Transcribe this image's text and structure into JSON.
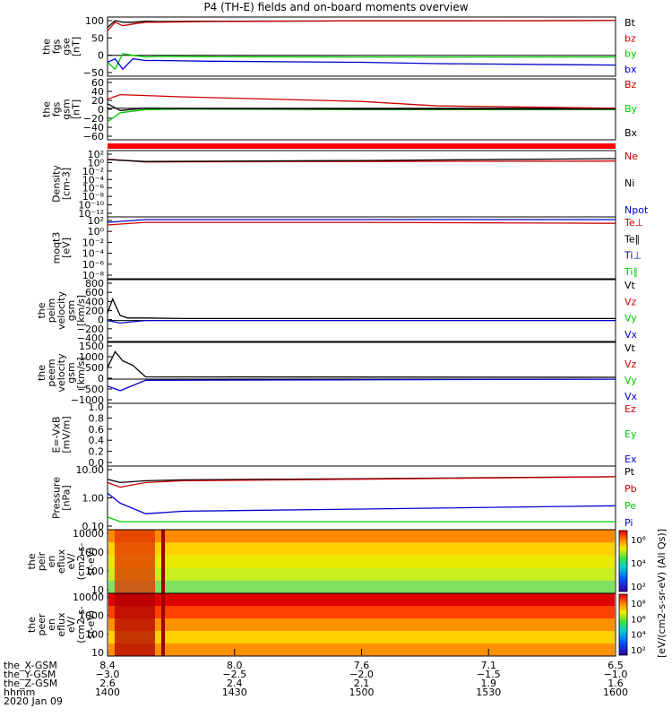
{
  "title": "P4 (TH-E) fields and on-board moments overview",
  "colors": {
    "black": "#000000",
    "red": "#cc0000",
    "green": "#00cc00",
    "blue": "#0000cc"
  },
  "chart_data": [
    {
      "type": "line",
      "ylabel": [
        "the",
        "fgs",
        "gse",
        "[nT]"
      ],
      "yticks": [
        "100",
        "50",
        "0",
        "−50"
      ],
      "legend": [
        {
          "name": "Bt",
          "color": "black"
        },
        {
          "name": "bz",
          "color": "red"
        },
        {
          "name": "by",
          "color": "green"
        },
        {
          "name": "bx",
          "color": "blue"
        }
      ],
      "series": [
        {
          "name": "Bt",
          "color": "black",
          "x": [
            1400,
            1403,
            1406,
            1410,
            1415,
            1420,
            1440,
            1500,
            1530,
            1600
          ],
          "y": [
            80,
            100,
            95,
            95,
            98,
            97,
            98,
            99,
            99,
            100
          ]
        },
        {
          "name": "bz",
          "color": "red",
          "x": [
            1400,
            1403,
            1406,
            1410,
            1415,
            1420,
            1440,
            1500,
            1530,
            1600
          ],
          "y": [
            70,
            95,
            85,
            90,
            95,
            95,
            97,
            99,
            99,
            100
          ]
        },
        {
          "name": "by",
          "color": "green",
          "x": [
            1400,
            1403,
            1406,
            1410,
            1415,
            1420,
            1440,
            1500,
            1530,
            1600
          ],
          "y": [
            -20,
            -40,
            5,
            0,
            -5,
            -3,
            -4,
            -5,
            -5,
            -5
          ]
        },
        {
          "name": "bx",
          "color": "blue",
          "x": [
            1400,
            1403,
            1406,
            1410,
            1415,
            1420,
            1440,
            1500,
            1530,
            1600
          ],
          "y": [
            -20,
            -10,
            -40,
            -10,
            -15,
            -15,
            -17,
            -20,
            -24,
            -28
          ]
        }
      ]
    },
    {
      "type": "line",
      "ylabel": [
        "the",
        "fgs",
        "gsm",
        "[nT]"
      ],
      "yticks": [
        "60",
        "40",
        "20",
        "0",
        "−20",
        "−40",
        "−60"
      ],
      "legend": [
        {
          "name": "Bz",
          "color": "red"
        },
        {
          "name": "By",
          "color": "green"
        },
        {
          "name": "Bx",
          "color": "black"
        }
      ],
      "series": [
        {
          "name": "Bz",
          "color": "red",
          "x": [
            1400,
            1405,
            1415,
            1430,
            1500,
            1530,
            1600
          ],
          "y": [
            20,
            30,
            28,
            25,
            15,
            5,
            0
          ]
        },
        {
          "name": "By",
          "color": "green",
          "x": [
            1400,
            1405,
            1415,
            1430,
            1500,
            1530,
            1600
          ],
          "y": [
            -30,
            -10,
            -3,
            -2,
            -3,
            -3,
            -3
          ]
        },
        {
          "name": "Bx",
          "color": "black",
          "x": [
            1400,
            1405,
            1415,
            1430,
            1500,
            1530,
            1600
          ],
          "y": [
            10,
            -5,
            0,
            -1,
            -2,
            -2,
            -2
          ]
        }
      ]
    },
    {
      "type": "line",
      "ylabel": [
        "Density",
        "[cm-3]"
      ],
      "yticks": [
        "10²",
        "10⁰",
        "10⁻²",
        "10⁻⁴",
        "10⁻⁶",
        "10⁻⁸",
        "10⁻¹⁰",
        "10⁻¹²"
      ],
      "legend": [
        {
          "name": "Ne",
          "color": "red"
        },
        {
          "name": "Ni",
          "color": "black"
        },
        {
          "name": "Npot",
          "color": "blue"
        }
      ],
      "series": [
        {
          "name": "Ne",
          "color": "red",
          "x": [
            1400,
            1405,
            1415,
            1500,
            1600
          ],
          "y": [
            1.5,
            1,
            0.4,
            0.5,
            0.6
          ]
        },
        {
          "name": "Ni",
          "color": "black",
          "x": [
            1400,
            1405,
            1415,
            1500,
            1600
          ],
          "y": [
            1.3,
            0.9,
            0.5,
            0.8,
            2
          ]
        }
      ]
    },
    {
      "type": "line",
      "ylabel": [
        "moqt3",
        "[eV]"
      ],
      "yticks": [
        "10²",
        "10⁰",
        "10⁻²",
        "10⁻⁴",
        "10⁻⁶",
        "10⁻⁸"
      ],
      "legend": [
        {
          "name": "Te⊥",
          "color": "red"
        },
        {
          "name": "Te∥",
          "color": "black"
        },
        {
          "name": "Ti⊥",
          "color": "blue"
        },
        {
          "name": "Ti∥",
          "color": "green"
        }
      ],
      "series": [
        {
          "name": "Ti",
          "color": "blue",
          "x": [
            1400,
            1415,
            1500,
            1600
          ],
          "y": [
            30,
            100,
            100,
            100
          ]
        },
        {
          "name": "Te",
          "color": "red",
          "x": [
            1400,
            1415,
            1500,
            1600
          ],
          "y": [
            10,
            30,
            30,
            20
          ]
        }
      ]
    },
    {
      "type": "line",
      "ylabel": [
        "the",
        "peim",
        "velocity",
        "gsm",
        "[km/s]"
      ],
      "yticks": [
        "800",
        "600",
        "400",
        "200",
        "0",
        "−200",
        "−400"
      ],
      "legend": [
        {
          "name": "Vt",
          "color": "black"
        },
        {
          "name": "Vz",
          "color": "red"
        },
        {
          "name": "Vy",
          "color": "green"
        },
        {
          "name": "Vx",
          "color": "blue"
        }
      ],
      "series": [
        {
          "name": "Vt",
          "color": "black",
          "x": [
            1400,
            1402,
            1405,
            1408,
            1415,
            1430,
            1600
          ],
          "y": [
            150,
            430,
            100,
            50,
            50,
            40,
            40
          ]
        },
        {
          "name": "Vx",
          "color": "blue",
          "x": [
            1400,
            1405,
            1415,
            1430,
            1600
          ],
          "y": [
            0,
            -50,
            0,
            0,
            0
          ]
        }
      ]
    },
    {
      "type": "line",
      "ylabel": [
        "the",
        "peem",
        "velocity",
        "gsm",
        "[km/s]"
      ],
      "yticks": [
        "1500",
        "1000",
        "500",
        "0",
        "−500",
        "−1000"
      ],
      "legend": [
        {
          "name": "Vt",
          "color": "black"
        },
        {
          "name": "Vz",
          "color": "red"
        },
        {
          "name": "Vy",
          "color": "green"
        },
        {
          "name": "Vx",
          "color": "blue"
        }
      ],
      "series": [
        {
          "name": "Vt",
          "color": "black",
          "x": [
            1400,
            1403,
            1406,
            1410,
            1415,
            1600
          ],
          "y": [
            500,
            1200,
            800,
            600,
            100,
            80
          ]
        },
        {
          "name": "Vx",
          "color": "blue",
          "x": [
            1400,
            1405,
            1415,
            1600
          ],
          "y": [
            -300,
            -500,
            -50,
            0
          ]
        }
      ]
    },
    {
      "type": "line",
      "ylabel": [
        "E=-VxB",
        "[mV/m]"
      ],
      "yticks": [
        "1.0",
        "0.8",
        "0.6",
        "0.4",
        "0.2",
        "0.0"
      ],
      "legend": [
        {
          "name": "Ez",
          "color": "red"
        },
        {
          "name": "Ey",
          "color": "green"
        },
        {
          "name": "Ex",
          "color": "blue"
        }
      ],
      "series": []
    },
    {
      "type": "line",
      "ylabel": [
        "Pressure",
        "[nPa]"
      ],
      "yticks": [
        "10.00",
        "1.00",
        "0.10"
      ],
      "legend": [
        {
          "name": "Pt",
          "color": "black"
        },
        {
          "name": "Pb",
          "color": "red"
        },
        {
          "name": "Pe",
          "color": "green"
        },
        {
          "name": "Pi",
          "color": "blue"
        }
      ],
      "series": [
        {
          "name": "Pt",
          "color": "black",
          "x": [
            1400,
            1405,
            1415,
            1430,
            1500,
            1600
          ],
          "y": [
            4,
            3,
            3.5,
            3.8,
            4.2,
            5
          ]
        },
        {
          "name": "Pb",
          "color": "red",
          "x": [
            1400,
            1405,
            1415,
            1430,
            1500,
            1600
          ],
          "y": [
            3,
            2,
            3,
            3.5,
            4,
            5
          ]
        },
        {
          "name": "Pi",
          "color": "blue",
          "x": [
            1400,
            1405,
            1415,
            1430,
            1500,
            1600
          ],
          "y": [
            1.2,
            0.5,
            0.2,
            0.25,
            0.3,
            0.4
          ]
        },
        {
          "name": "Pe",
          "color": "green",
          "x": [
            1400,
            1405,
            1415,
            1430,
            1500,
            1600
          ],
          "y": [
            0.15,
            0.1,
            0.1,
            0.1,
            0.1,
            0.1
          ]
        }
      ]
    },
    {
      "type": "heatmap",
      "ylabel": [
        "the",
        "peir",
        "en",
        "eflux",
        "eV/",
        "(cm2-s-",
        "sr-eV)"
      ],
      "yticks": [
        "10000",
        "1000",
        "100",
        "10"
      ]
    },
    {
      "type": "heatmap",
      "ylabel": [
        "the",
        "peer",
        "en",
        "eflux",
        "eV/",
        "(cm2-s-",
        "sr-eV)"
      ],
      "yticks": [
        "10000",
        "1000",
        "100",
        "10"
      ]
    }
  ],
  "colorbar": {
    "label": "[eV/(cm2-s-sr-eV) (All Qs)]",
    "ticks_top": [
      "10⁶",
      "10⁴",
      "10²"
    ],
    "ticks_bottom": [
      "10⁸",
      "10⁶",
      "10⁴",
      "10²"
    ]
  },
  "xaxis": {
    "rows": [
      {
        "label": "the_X-GSM",
        "values": [
          "8.4",
          "8.0",
          "7.6",
          "7.1",
          "6.5"
        ]
      },
      {
        "label": "the_Y-GSM",
        "values": [
          "−3.0",
          "−2.5",
          "−2.0",
          "−1.5",
          "−1.0"
        ]
      },
      {
        "label": "the_Z-GSM",
        "values": [
          "2.6",
          "2.4",
          "2.1",
          "1.9",
          "1.6"
        ]
      },
      {
        "label": "hhmm",
        "values": [
          "1400",
          "1430",
          "1500",
          "1530",
          "1600"
        ]
      }
    ],
    "date": "2020 Jan 09",
    "range": [
      1400,
      1600
    ]
  }
}
